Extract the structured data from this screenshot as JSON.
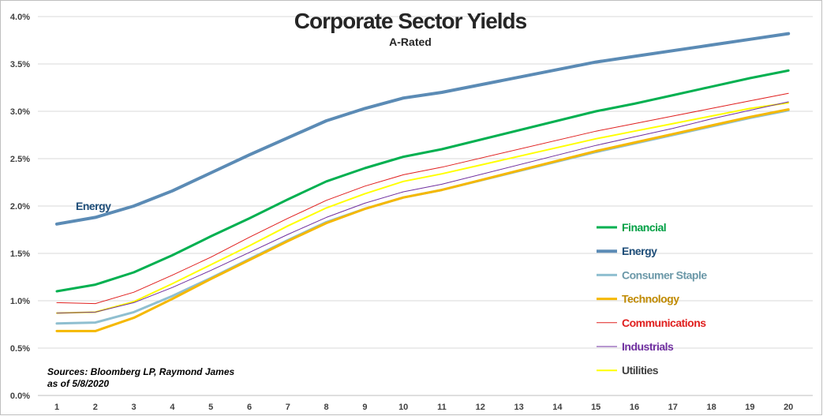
{
  "chart_data": {
    "type": "line",
    "title": "Corporate Sector Yields",
    "subtitle": "A-Rated",
    "x": [
      1,
      2,
      3,
      4,
      5,
      6,
      7,
      8,
      9,
      10,
      11,
      15,
      16,
      17,
      18,
      19,
      20
    ],
    "x_tick_labels": [
      "1",
      "2",
      "3",
      "4",
      "5",
      "6",
      "7",
      "8",
      "9",
      "10",
      "11",
      "12",
      "13",
      "14",
      "15",
      "16",
      "17",
      "18",
      "19",
      "20"
    ],
    "ylim": [
      0.0,
      4.0
    ],
    "y_ticks": [
      "0.0%",
      "0.5%",
      "1.0%",
      "1.5%",
      "2.0%",
      "2.5%",
      "3.0%",
      "3.5%",
      "4.0%"
    ],
    "grid": true,
    "legend_position": "bottom-right",
    "series": [
      {
        "name": "Financial",
        "color": "#00b050",
        "width": 3,
        "values": [
          1.1,
          1.17,
          1.3,
          1.48,
          1.68,
          1.87,
          2.07,
          2.26,
          2.4,
          2.52,
          2.6,
          3.0,
          3.08,
          3.17,
          3.26,
          3.35,
          3.43
        ]
      },
      {
        "name": "Energy",
        "color": "#5b8bb5",
        "width": 4,
        "values": [
          1.81,
          1.88,
          2.0,
          2.16,
          2.35,
          2.54,
          2.72,
          2.9,
          3.03,
          3.14,
          3.2,
          3.52,
          3.58,
          3.64,
          3.7,
          3.76,
          3.82
        ]
      },
      {
        "name": "Consumer Staple",
        "color": "#8fbfd0",
        "width": 3,
        "values": [
          0.76,
          0.77,
          0.88,
          1.05,
          1.24,
          1.44,
          1.64,
          1.83,
          1.97,
          2.09,
          2.17,
          2.57,
          2.66,
          2.75,
          2.84,
          2.93,
          3.01
        ]
      },
      {
        "name": "Technology",
        "color": "#f5b800",
        "width": 3,
        "values": [
          0.68,
          0.68,
          0.82,
          1.02,
          1.23,
          1.43,
          1.63,
          1.82,
          1.97,
          2.09,
          2.17,
          2.58,
          2.67,
          2.76,
          2.85,
          2.94,
          3.02
        ]
      },
      {
        "name": "Communications",
        "color": "#e0201f",
        "width": 1,
        "values": [
          0.98,
          0.97,
          1.09,
          1.27,
          1.46,
          1.67,
          1.87,
          2.06,
          2.21,
          2.33,
          2.41,
          2.79,
          2.87,
          2.95,
          3.03,
          3.11,
          3.19
        ]
      },
      {
        "name": "Industrials",
        "color": "#7030a0",
        "width": 1,
        "values": [
          0.87,
          0.88,
          0.98,
          1.14,
          1.32,
          1.51,
          1.7,
          1.88,
          2.03,
          2.15,
          2.23,
          2.64,
          2.73,
          2.82,
          2.92,
          3.01,
          3.1
        ]
      },
      {
        "name": "Utilities",
        "color": "#ffff00",
        "width": 2,
        "values": [
          0.87,
          0.88,
          0.99,
          1.18,
          1.38,
          1.58,
          1.79,
          1.98,
          2.13,
          2.26,
          2.34,
          2.71,
          2.79,
          2.87,
          2.95,
          3.03,
          3.09
        ]
      }
    ],
    "annotations": [
      "Energy"
    ],
    "notes": [
      "Sources: Bloomberg LP, Raymond  James",
      "as of 5/8/2020"
    ]
  }
}
